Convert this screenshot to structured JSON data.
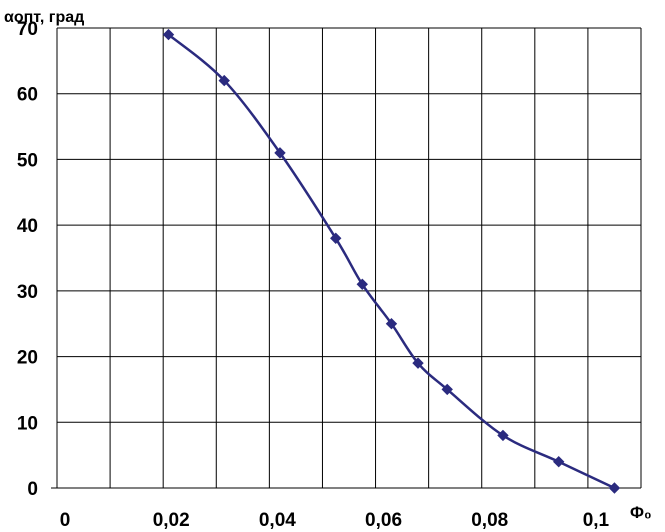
{
  "chart_data": {
    "type": "line",
    "title": "",
    "ylabel": "αопт, град",
    "xlabel": "Φ₀",
    "xlim": [
      0,
      0.11
    ],
    "ylim": [
      0,
      70
    ],
    "x_ticks": [
      0,
      0.02,
      0.04,
      0.06,
      0.08,
      0.1
    ],
    "x_tick_labels": [
      "0",
      "0,02",
      "0,04",
      "0,06",
      "0,08",
      "0,1"
    ],
    "y_ticks": [
      0,
      10,
      20,
      30,
      40,
      50,
      60,
      70
    ],
    "y_tick_labels": [
      "0",
      "10",
      "20",
      "30",
      "40",
      "50",
      "60",
      "70"
    ],
    "grid": true,
    "legend": "none",
    "series": [
      {
        "marker": "diamond",
        "color": "#2b2b7f",
        "x": [
          0.021,
          0.0315,
          0.042,
          0.0525,
          0.0575,
          0.063,
          0.068,
          0.0735,
          0.084,
          0.0945,
          0.105
        ],
        "y": [
          69,
          62,
          51,
          38,
          31,
          25,
          19,
          15,
          8,
          4,
          0
        ]
      }
    ]
  }
}
